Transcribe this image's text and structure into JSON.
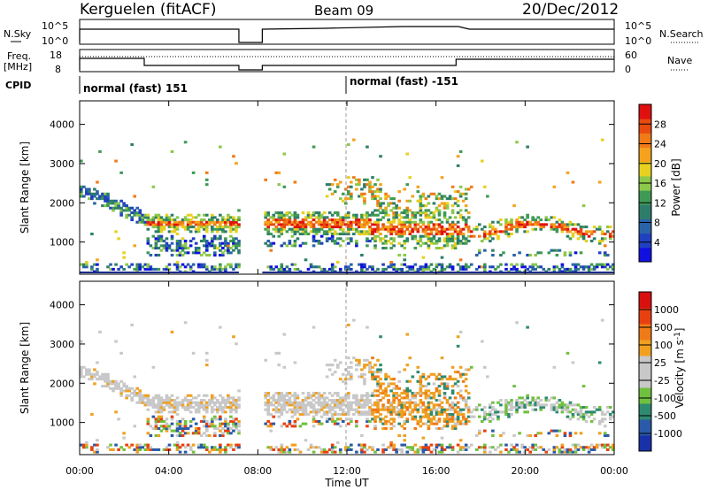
{
  "header": {
    "station": "Kerguelen (fitACF)",
    "beam": "Beam 09",
    "date": "20/Dec/2012"
  },
  "panels": {
    "nsky": {
      "left_label": "N.Sky",
      "left_ticks": [
        "10^5",
        "10^0"
      ],
      "right_label": "N.Search",
      "right_ticks": [
        "10^5",
        "10^0"
      ]
    },
    "freq": {
      "left_label_1": "Freq.",
      "left_label_2": "[MHz]",
      "left_ticks": [
        "18",
        "8"
      ],
      "right_label": "Nave",
      "right_ticks": [
        "60",
        "0"
      ]
    },
    "cpid": {
      "label": "CPID",
      "segments": [
        "normal (fast) 151",
        "normal (fast) -151"
      ]
    }
  },
  "chart_data": [
    {
      "type": "heatmap",
      "name": "power",
      "ylabel": "Slant Range [km]",
      "yticks": [
        "1000",
        "2000",
        "3000",
        "4000"
      ],
      "ylim": [
        180,
        4600
      ],
      "colorbar": {
        "label": "Power [dB]",
        "ticks": [
          "4",
          "8",
          "12",
          "16",
          "20",
          "24",
          "28"
        ],
        "colors": [
          "#1010e0",
          "#2040c0",
          "#2a63a8",
          "#2e7d6a",
          "#3f9a55",
          "#8cc84a",
          "#e8d020",
          "#f5a21c",
          "#f07a18",
          "#e84a10",
          "#e01010"
        ]
      },
      "data_gaps_hours": [
        [
          7.15,
          8.2
        ]
      ]
    },
    {
      "type": "heatmap",
      "name": "velocity",
      "ylabel": "Slant Range [km]",
      "yticks": [
        "1000",
        "2000",
        "3000",
        "4000"
      ],
      "ylim": [
        180,
        4600
      ],
      "colorbar": {
        "label": "Velocity [m s^-1]",
        "ticks": [
          "1000",
          "500",
          "100",
          "25",
          "-25",
          "-100",
          "-500",
          "-1000"
        ],
        "colors": [
          "#1830a8",
          "#2a5aa8",
          "#2e8a70",
          "#70c040",
          "#c8c8c8",
          "#c8c8c8",
          "#f0a020",
          "#f07a18",
          "#e84010",
          "#d81010"
        ]
      },
      "data_gaps_hours": [
        [
          7.15,
          8.2
        ]
      ]
    }
  ],
  "xaxis": {
    "label": "Time UT",
    "ticks": [
      "00:00",
      "04:00",
      "08:00",
      "12:00",
      "16:00",
      "20:00",
      "00:00"
    ],
    "range_hours": [
      0,
      24
    ]
  }
}
